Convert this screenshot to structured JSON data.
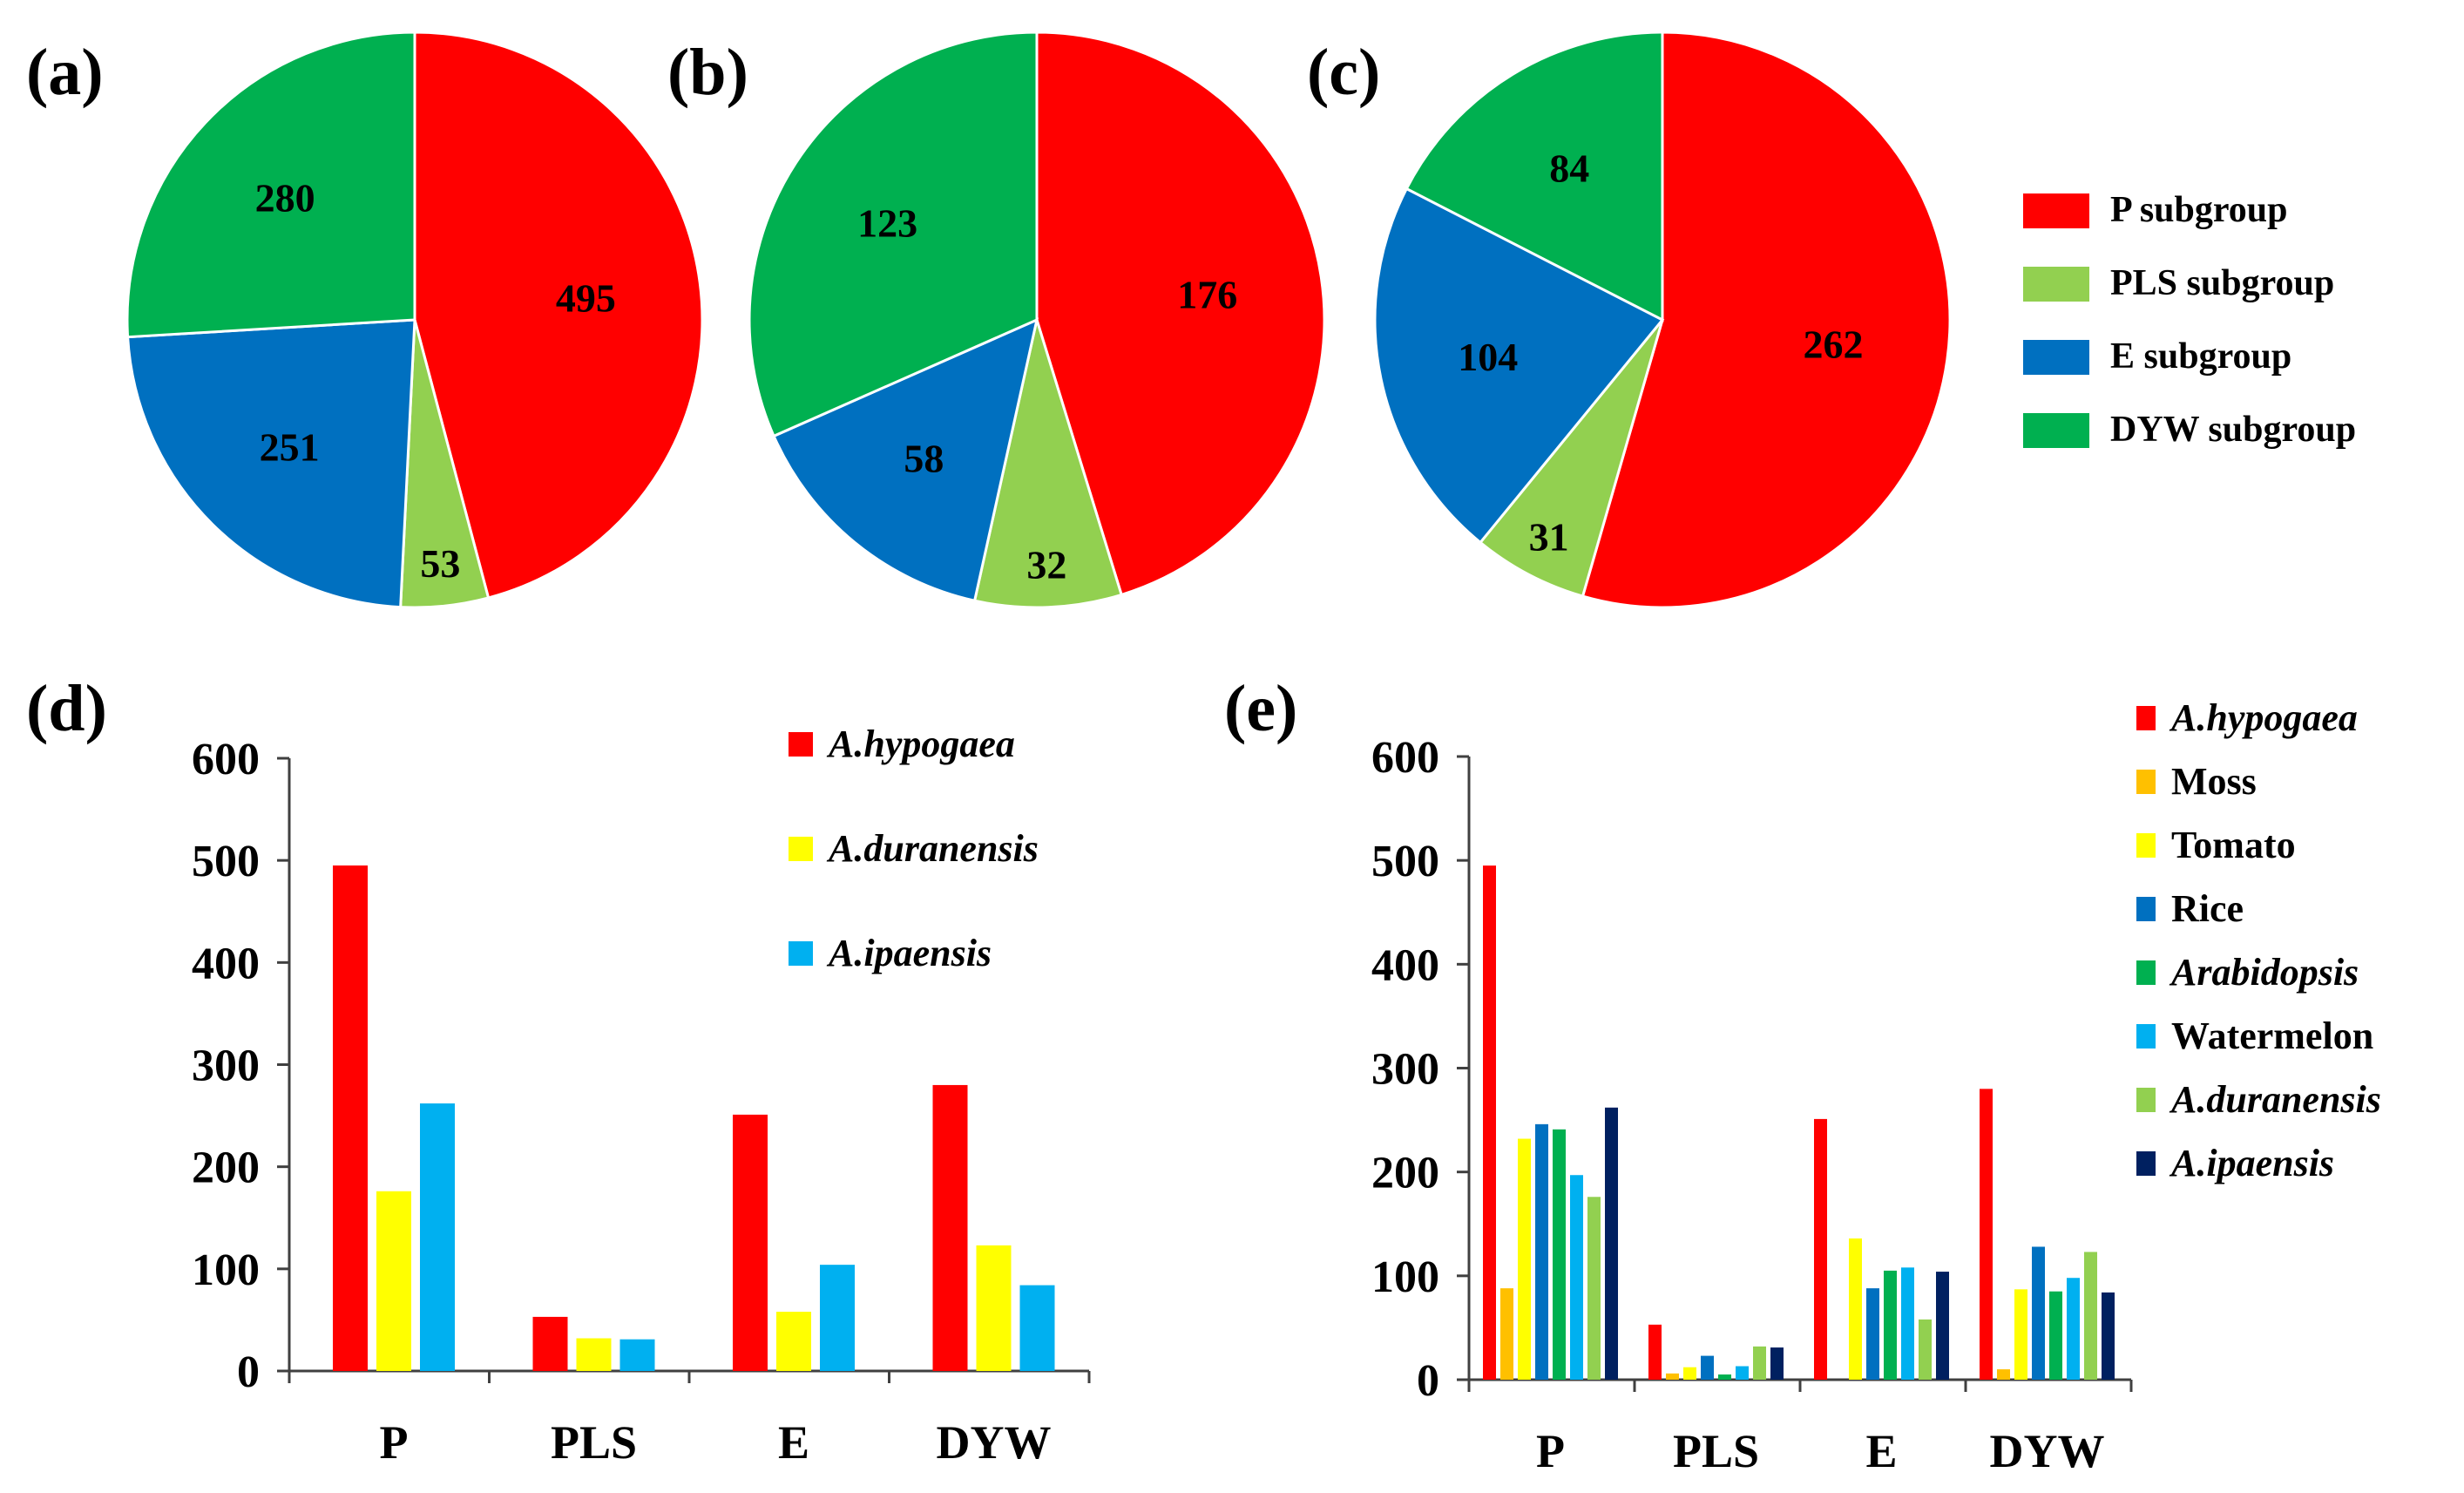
{
  "chart_data": [
    {
      "id": "a",
      "type": "pie",
      "panel_label": "(a)",
      "slices": [
        {
          "name": "P subgroup",
          "value": 495,
          "color": "#ff0000"
        },
        {
          "name": "PLS subgroup",
          "value": 53,
          "color": "#92d050"
        },
        {
          "name": "E subgroup",
          "value": 251,
          "color": "#0070c0"
        },
        {
          "name": "DYW subgroup",
          "value": 280,
          "color": "#00b050"
        }
      ]
    },
    {
      "id": "b",
      "type": "pie",
      "panel_label": "(b)",
      "slices": [
        {
          "name": "P subgroup",
          "value": 176,
          "color": "#ff0000"
        },
        {
          "name": "PLS subgroup",
          "value": 32,
          "color": "#92d050"
        },
        {
          "name": "E subgroup",
          "value": 58,
          "color": "#0070c0"
        },
        {
          "name": "DYW subgroup",
          "value": 123,
          "color": "#00b050"
        }
      ]
    },
    {
      "id": "c",
      "type": "pie",
      "panel_label": "(c)",
      "slices": [
        {
          "name": "P subgroup",
          "value": 262,
          "color": "#ff0000"
        },
        {
          "name": "PLS subgroup",
          "value": 31,
          "color": "#92d050"
        },
        {
          "name": "E subgroup",
          "value": 104,
          "color": "#0070c0"
        },
        {
          "name": "DYW subgroup",
          "value": 84,
          "color": "#00b050"
        }
      ],
      "legend": [
        "P subgroup",
        "PLS subgroup",
        "E subgroup",
        "DYW subgroup"
      ]
    },
    {
      "id": "d",
      "type": "bar",
      "panel_label": "(d)",
      "categories": [
        "P",
        "PLS",
        "E",
        "DYW"
      ],
      "ylim": [
        0,
        600
      ],
      "yticks": [
        0,
        100,
        200,
        300,
        400,
        500,
        600
      ],
      "series": [
        {
          "name": "A.hypogaea",
          "color": "#ff0000",
          "italic": true,
          "values": [
            495,
            53,
            251,
            280
          ]
        },
        {
          "name": "A.duranensis",
          "color": "#ffff00",
          "italic": true,
          "values": [
            176,
            32,
            58,
            123
          ]
        },
        {
          "name": "A.ipaensis",
          "color": "#00b0f0",
          "italic": true,
          "values": [
            262,
            31,
            104,
            84
          ]
        }
      ]
    },
    {
      "id": "e",
      "type": "bar",
      "panel_label": "(e)",
      "categories": [
        "P",
        "PLS",
        "E",
        "DYW"
      ],
      "ylim": [
        0,
        600
      ],
      "yticks": [
        0,
        100,
        200,
        300,
        400,
        500,
        600
      ],
      "series": [
        {
          "name": "A.hypogaea",
          "color": "#ff0000",
          "italic": true,
          "values": [
            495,
            53,
            251,
            280
          ]
        },
        {
          "name": "Moss",
          "color": "#ffc000",
          "italic": false,
          "values": [
            88,
            6,
            0,
            10
          ]
        },
        {
          "name": "Tomato",
          "color": "#ffff00",
          "italic": false,
          "values": [
            232,
            12,
            136,
            87
          ]
        },
        {
          "name": "Rice",
          "color": "#0070c0",
          "italic": false,
          "values": [
            246,
            23,
            88,
            128
          ]
        },
        {
          "name": "Arabidopsis",
          "color": "#00b050",
          "italic": true,
          "values": [
            241,
            5,
            105,
            85
          ]
        },
        {
          "name": "Watermelon",
          "color": "#00b0f0",
          "italic": false,
          "values": [
            197,
            13,
            108,
            98
          ]
        },
        {
          "name": "A.duranensis",
          "color": "#92d050",
          "italic": true,
          "values": [
            176,
            32,
            58,
            123
          ]
        },
        {
          "name": "A.ipaensis",
          "color": "#002060",
          "italic": true,
          "values": [
            262,
            31,
            104,
            84
          ]
        }
      ]
    }
  ]
}
